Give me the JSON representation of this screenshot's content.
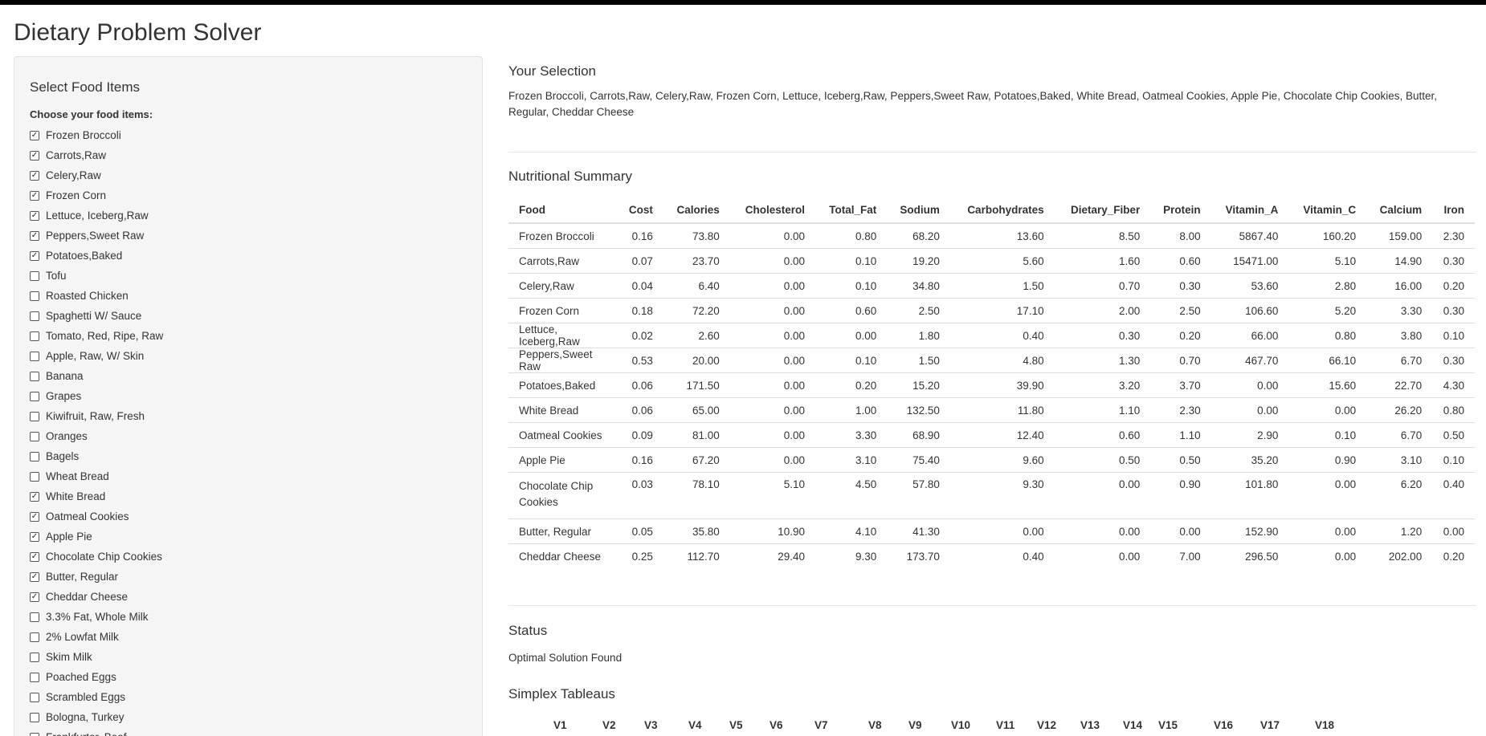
{
  "app": {
    "title": "Dietary Problem Solver"
  },
  "sidebar": {
    "heading": "Select Food Items",
    "choose_label": "Choose your food items:",
    "items": [
      {
        "label": "Frozen Broccoli",
        "checked": true
      },
      {
        "label": "Carrots,Raw",
        "checked": true
      },
      {
        "label": "Celery,Raw",
        "checked": true
      },
      {
        "label": "Frozen Corn",
        "checked": true
      },
      {
        "label": "Lettuce, Iceberg,Raw",
        "checked": true
      },
      {
        "label": "Peppers,Sweet Raw",
        "checked": true
      },
      {
        "label": "Potatoes,Baked",
        "checked": true
      },
      {
        "label": "Tofu",
        "checked": false
      },
      {
        "label": "Roasted Chicken",
        "checked": false
      },
      {
        "label": "Spaghetti W/ Sauce",
        "checked": false
      },
      {
        "label": "Tomato, Red, Ripe, Raw",
        "checked": false
      },
      {
        "label": "Apple, Raw, W/ Skin",
        "checked": false
      },
      {
        "label": "Banana",
        "checked": false
      },
      {
        "label": "Grapes",
        "checked": false
      },
      {
        "label": "Kiwifruit, Raw, Fresh",
        "checked": false
      },
      {
        "label": "Oranges",
        "checked": false
      },
      {
        "label": "Bagels",
        "checked": false
      },
      {
        "label": "Wheat Bread",
        "checked": false
      },
      {
        "label": "White Bread",
        "checked": true
      },
      {
        "label": "Oatmeal Cookies",
        "checked": true
      },
      {
        "label": "Apple Pie",
        "checked": true
      },
      {
        "label": "Chocolate Chip Cookies",
        "checked": true
      },
      {
        "label": "Butter, Regular",
        "checked": true
      },
      {
        "label": "Cheddar Cheese",
        "checked": true
      },
      {
        "label": "3.3% Fat, Whole Milk",
        "checked": false
      },
      {
        "label": "2% Lowfat Milk",
        "checked": false
      },
      {
        "label": "Skim Milk",
        "checked": false
      },
      {
        "label": "Poached Eggs",
        "checked": false
      },
      {
        "label": "Scrambled Eggs",
        "checked": false
      },
      {
        "label": "Bologna, Turkey",
        "checked": false
      },
      {
        "label": "Frankfurter, Beef",
        "checked": false
      }
    ]
  },
  "selection": {
    "heading": "Your Selection",
    "text": "Frozen Broccoli, Carrots,Raw, Celery,Raw, Frozen Corn, Lettuce, Iceberg,Raw, Peppers,Sweet Raw, Potatoes,Baked, White Bread, Oatmeal Cookies, Apple Pie, Chocolate Chip Cookies, Butter, Regular, Cheddar Cheese"
  },
  "nutrition": {
    "heading": "Nutritional Summary",
    "columns": [
      "Food",
      "Cost",
      "Calories",
      "Cholesterol",
      "Total_Fat",
      "Sodium",
      "Carbohydrates",
      "Dietary_Fiber",
      "Protein",
      "Vitamin_A",
      "Vitamin_C",
      "Calcium",
      "Iron"
    ],
    "rows": [
      [
        "Frozen Broccoli",
        "0.16",
        "73.80",
        "0.00",
        "0.80",
        "68.20",
        "13.60",
        "8.50",
        "8.00",
        "5867.40",
        "160.20",
        "159.00",
        "2.30"
      ],
      [
        "Carrots,Raw",
        "0.07",
        "23.70",
        "0.00",
        "0.10",
        "19.20",
        "5.60",
        "1.60",
        "0.60",
        "15471.00",
        "5.10",
        "14.90",
        "0.30"
      ],
      [
        "Celery,Raw",
        "0.04",
        "6.40",
        "0.00",
        "0.10",
        "34.80",
        "1.50",
        "0.70",
        "0.30",
        "53.60",
        "2.80",
        "16.00",
        "0.20"
      ],
      [
        "Frozen Corn",
        "0.18",
        "72.20",
        "0.00",
        "0.60",
        "2.50",
        "17.10",
        "2.00",
        "2.50",
        "106.60",
        "5.20",
        "3.30",
        "0.30"
      ],
      [
        "Lettuce, Iceberg,Raw",
        "0.02",
        "2.60",
        "0.00",
        "0.00",
        "1.80",
        "0.40",
        "0.30",
        "0.20",
        "66.00",
        "0.80",
        "3.80",
        "0.10"
      ],
      [
        "Peppers,Sweet Raw",
        "0.53",
        "20.00",
        "0.00",
        "0.10",
        "1.50",
        "4.80",
        "1.30",
        "0.70",
        "467.70",
        "66.10",
        "6.70",
        "0.30"
      ],
      [
        "Potatoes,Baked",
        "0.06",
        "171.50",
        "0.00",
        "0.20",
        "15.20",
        "39.90",
        "3.20",
        "3.70",
        "0.00",
        "15.60",
        "22.70",
        "4.30"
      ],
      [
        "White Bread",
        "0.06",
        "65.00",
        "0.00",
        "1.00",
        "132.50",
        "11.80",
        "1.10",
        "2.30",
        "0.00",
        "0.00",
        "26.20",
        "0.80"
      ],
      [
        "Oatmeal Cookies",
        "0.09",
        "81.00",
        "0.00",
        "3.30",
        "68.90",
        "12.40",
        "0.60",
        "1.10",
        "2.90",
        "0.10",
        "6.70",
        "0.50"
      ],
      [
        "Apple Pie",
        "0.16",
        "67.20",
        "0.00",
        "3.10",
        "75.40",
        "9.60",
        "0.50",
        "0.50",
        "35.20",
        "0.90",
        "3.10",
        "0.10"
      ],
      [
        "Chocolate Chip Cookies",
        "0.03",
        "78.10",
        "5.10",
        "4.50",
        "57.80",
        "9.30",
        "0.00",
        "0.90",
        "101.80",
        "0.00",
        "6.20",
        "0.40"
      ],
      [
        "Butter, Regular",
        "0.05",
        "35.80",
        "10.90",
        "4.10",
        "41.30",
        "0.00",
        "0.00",
        "0.00",
        "152.90",
        "0.00",
        "1.20",
        "0.00"
      ],
      [
        "Cheddar Cheese",
        "0.25",
        "112.70",
        "29.40",
        "9.30",
        "173.70",
        "0.40",
        "0.00",
        "7.00",
        "296.50",
        "0.00",
        "202.00",
        "0.20"
      ]
    ]
  },
  "status": {
    "heading": "Status",
    "text": "Optimal Solution Found"
  },
  "tableau": {
    "heading": "Simplex Tableaus",
    "columns": [
      "V1",
      "V2",
      "V3",
      "V4",
      "V5",
      "V6",
      "V7",
      "V8",
      "V9",
      "V10",
      "V11",
      "V12",
      "V13",
      "V14",
      "V15",
      "V16",
      "V17",
      "V18"
    ]
  },
  "icons": {
    "check": "✓"
  }
}
